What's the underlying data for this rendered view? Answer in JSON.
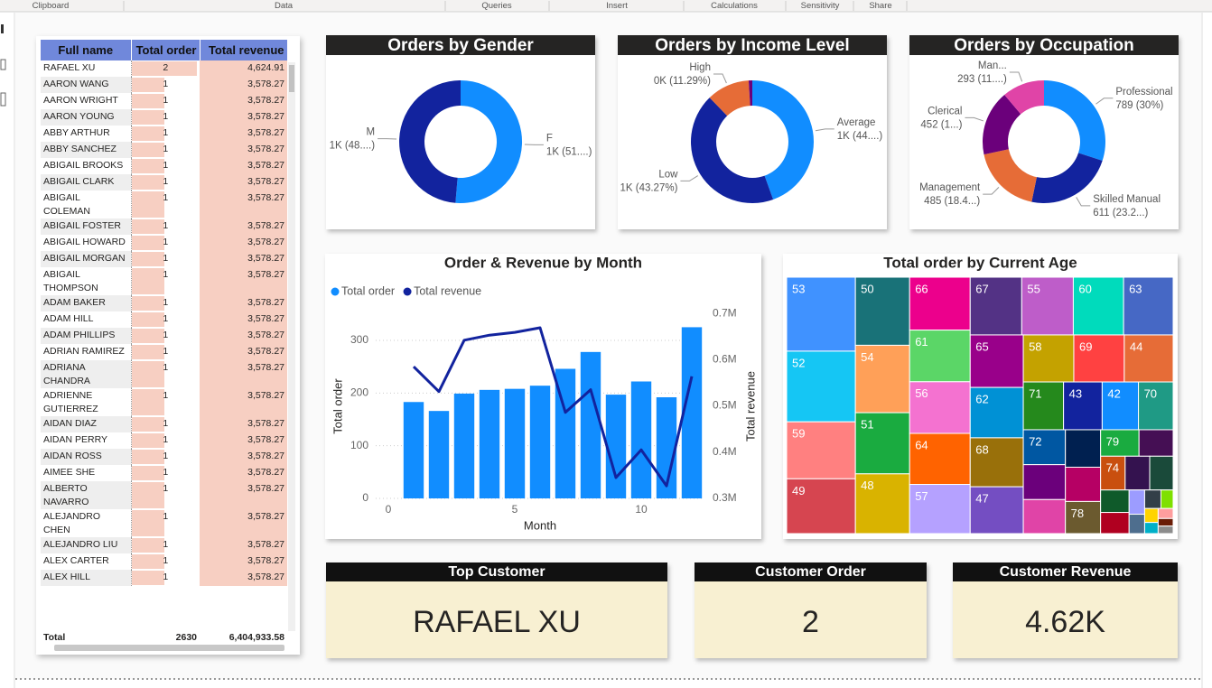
{
  "ribbon": [
    "Clipboard",
    "Data",
    "Queries",
    "Insert",
    "Calculations",
    "Sensitivity",
    "Share"
  ],
  "table": {
    "columns": [
      "Full name",
      "Total order",
      "Total revenue"
    ],
    "rows": [
      [
        "RAFAEL XU",
        2,
        "4,624.91"
      ],
      [
        "AARON WANG",
        1,
        "3,578.27"
      ],
      [
        "AARON WRIGHT",
        1,
        "3,578.27"
      ],
      [
        "AARON YOUNG",
        1,
        "3,578.27"
      ],
      [
        "ABBY ARTHUR",
        1,
        "3,578.27"
      ],
      [
        "ABBY SANCHEZ",
        1,
        "3,578.27"
      ],
      [
        "ABIGAIL BROOKS",
        1,
        "3,578.27"
      ],
      [
        "ABIGAIL CLARK",
        1,
        "3,578.27"
      ],
      [
        "ABIGAIL COLEMAN",
        1,
        "3,578.27"
      ],
      [
        "ABIGAIL FOSTER",
        1,
        "3,578.27"
      ],
      [
        "ABIGAIL HOWARD",
        1,
        "3,578.27"
      ],
      [
        "ABIGAIL MORGAN",
        1,
        "3,578.27"
      ],
      [
        "ABIGAIL THOMPSON",
        1,
        "3,578.27"
      ],
      [
        "ADAM BAKER",
        1,
        "3,578.27"
      ],
      [
        "ADAM HILL",
        1,
        "3,578.27"
      ],
      [
        "ADAM PHILLIPS",
        1,
        "3,578.27"
      ],
      [
        "ADRIAN RAMIREZ",
        1,
        "3,578.27"
      ],
      [
        "ADRIANA CHANDRA",
        1,
        "3,578.27"
      ],
      [
        "ADRIENNE GUTIERREZ",
        1,
        "3,578.27"
      ],
      [
        "AIDAN DIAZ",
        1,
        "3,578.27"
      ],
      [
        "AIDAN PERRY",
        1,
        "3,578.27"
      ],
      [
        "AIDAN ROSS",
        1,
        "3,578.27"
      ],
      [
        "AIMEE SHE",
        1,
        "3,578.27"
      ],
      [
        "ALBERTO NAVARRO",
        1,
        "3,578.27"
      ],
      [
        "ALEJANDRO CHEN",
        1,
        "3,578.27"
      ],
      [
        "ALEJANDRO LIU",
        1,
        "3,578.27"
      ],
      [
        "ALEX CARTER",
        1,
        "3,578.27"
      ],
      [
        "ALEX HILL",
        1,
        "3,578.27"
      ]
    ],
    "total": [
      "Total",
      2630,
      "6,404,933.58"
    ]
  },
  "chart_data": [
    {
      "type": "donut",
      "title": "Orders by Gender",
      "categories": [
        "F",
        "M"
      ],
      "values": [
        1350,
        1280
      ],
      "value_labels": [
        "1K (51....)",
        "1K (48....)"
      ],
      "colors": [
        "#118DFF",
        "#12239E"
      ]
    },
    {
      "type": "donut",
      "title": "Orders by Income Level",
      "categories": [
        "Average",
        "Low",
        "High",
        null
      ],
      "values": [
        1170,
        1138,
        297,
        25
      ],
      "value_labels": [
        "1K (44....)",
        "1K (43.27%)",
        "0K (11.29%)",
        null
      ],
      "colors": [
        "#118DFF",
        "#12239E",
        "#E66C37",
        "#6B007B"
      ]
    },
    {
      "type": "donut",
      "title": "Orders by Occupation",
      "categories": [
        "Professional",
        "Skilled Manual",
        "Management",
        "Clerical",
        "Man..."
      ],
      "values": [
        789,
        611,
        485,
        452,
        293
      ],
      "value_labels": [
        "789 (30%)",
        "611 (23.2...)",
        "485 (18.4...)",
        "452 (1...)",
        "293 (11....)"
      ],
      "colors": [
        "#118DFF",
        "#12239E",
        "#E66C37",
        "#6B007B",
        "#E044A7"
      ]
    },
    {
      "type": "combo",
      "title": "Order & Revenue by Month",
      "x": [
        1,
        2,
        3,
        4,
        5,
        6,
        7,
        8,
        9,
        10,
        11,
        12
      ],
      "xlabel": "Month",
      "ylabel": "Total order",
      "y2label": "Total revenue",
      "xlim": [
        -0.5,
        12.5
      ],
      "xticks": [
        0,
        5,
        10
      ],
      "ylim": [
        0,
        360
      ],
      "yticks": [
        0,
        100,
        200,
        300
      ],
      "y2lim": [
        300000,
        710000
      ],
      "y2ticks": [
        {
          "value": 300000,
          "label": "0.3M"
        },
        {
          "value": 400000,
          "label": "0.4M"
        },
        {
          "value": 500000,
          "label": "0.5M"
        },
        {
          "value": 600000,
          "label": "0.6M"
        },
        {
          "value": 700000,
          "label": "0.7M"
        }
      ],
      "grid": true,
      "series": [
        {
          "name": "Total order",
          "type": "bar",
          "color": "#118DFF",
          "values": [
            183,
            166,
            199,
            206,
            208,
            214,
            246,
            278,
            197,
            222,
            192,
            325
          ]
        },
        {
          "name": "Total revenue",
          "type": "line",
          "axis": "y2",
          "color": "#12239E",
          "values": [
            585000,
            531000,
            642000,
            653000,
            659000,
            669000,
            486000,
            535000,
            345000,
            405000,
            327000,
            564000
          ]
        }
      ]
    },
    {
      "type": "treemap",
      "title": "Total order by Current Age",
      "categories": [
        "53",
        "52",
        "59",
        "49",
        "50",
        "54",
        "51",
        "48",
        "66",
        "61",
        "56",
        "64",
        "57",
        "67",
        "55",
        "60",
        "63",
        "65",
        "62",
        "68",
        "47",
        "58",
        "69",
        "44",
        "71",
        "43",
        "42",
        "70",
        "72",
        null,
        null,
        null,
        null,
        "78",
        "79",
        null,
        "74",
        null,
        null,
        null,
        null,
        null,
        null,
        null,
        null,
        null,
        null,
        null,
        null,
        null
      ],
      "values": [
        135,
        129,
        104,
        100,
        98,
        97,
        88,
        86,
        85,
        83,
        83,
        82,
        79,
        79,
        79,
        77,
        76,
        74,
        71,
        69,
        66,
        63,
        63,
        61,
        51,
        49,
        46,
        44,
        39,
        39,
        38,
        35,
        32,
        30,
        27,
        24,
        22,
        22,
        21,
        17,
        16,
        10,
        8,
        8,
        6,
        5,
        4,
        4,
        3,
        3
      ],
      "colors": [
        "#4092FF",
        "#15C6F4",
        "#FF8080",
        "#D64550",
        "#197278",
        "#FFA058",
        "#1AAB40",
        "#D9B300",
        "#EC008C",
        "#5BD667",
        "#F472D0",
        "#FF6300",
        "#B5A1FF",
        "#533285",
        "#BE5DC9",
        "#00DBBC",
        "#4668C5",
        "#99008A",
        "#0091D5",
        "#99700A",
        "#744EC2",
        "#C4A200",
        "#FF4141",
        "#E66C37",
        "#25891C",
        "#12239E",
        "#118DFF",
        "#1F9A85",
        "#0057A2",
        "#6B007B",
        "#E044A7",
        "#002050",
        "#B60064",
        "#6B5A2F",
        "#1AAB40",
        "#450F54",
        "#C94F0F",
        "#34124F",
        "#1A4A3A",
        "#0F5A2A",
        "#B00020",
        "#9C9CFF",
        "#4E6E8E",
        "#333F48",
        "#7FE000",
        "#FFD400",
        "#00B0C8",
        "#FF9E9E",
        "#6A1C06",
        "#8C8C8C"
      ]
    }
  ],
  "cards": [
    {
      "title": "Top Customer",
      "value": "RAFAEL XU"
    },
    {
      "title": "Customer Order",
      "value": 2
    },
    {
      "title": "Customer Revenue",
      "value": "4.62K"
    }
  ]
}
